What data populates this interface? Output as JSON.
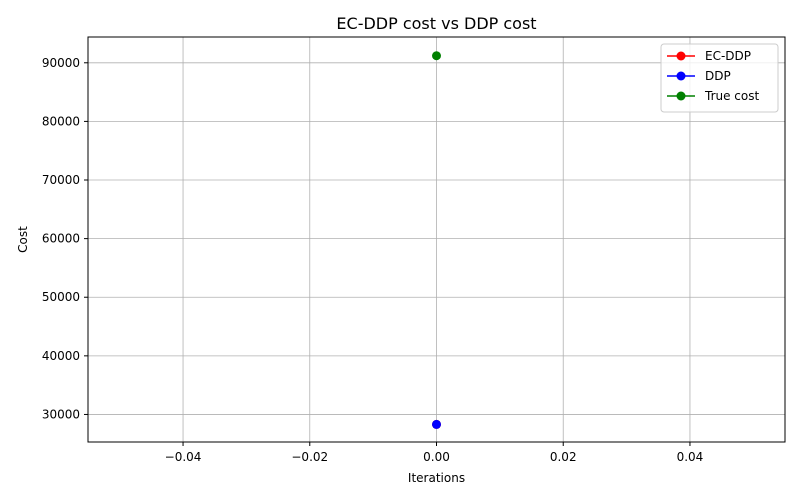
{
  "chart_data": {
    "type": "line",
    "title": "EC-DDP cost vs DDP cost",
    "xlabel": "Iterations",
    "ylabel": "Cost",
    "xlim": [
      -0.055,
      0.055
    ],
    "ylim": [
      25300,
      94400
    ],
    "xticks": [
      -0.04,
      -0.02,
      0.0,
      0.02,
      0.04
    ],
    "xtick_labels": [
      "−0.04",
      "−0.02",
      "0.00",
      "0.02",
      "0.04"
    ],
    "yticks": [
      30000,
      40000,
      50000,
      60000,
      70000,
      80000,
      90000
    ],
    "ytick_labels": [
      "30000",
      "40000",
      "50000",
      "60000",
      "70000",
      "80000",
      "90000"
    ],
    "grid": true,
    "legend_position": "top-right",
    "series": [
      {
        "name": "EC-DDP",
        "color": "#ff0000",
        "x": [
          0
        ],
        "y": [
          28300
        ]
      },
      {
        "name": "DDP",
        "color": "#0000ff",
        "x": [
          0
        ],
        "y": [
          28300
        ]
      },
      {
        "name": "True cost",
        "color": "#008000",
        "x": [
          0
        ],
        "y": [
          91200
        ]
      }
    ]
  }
}
